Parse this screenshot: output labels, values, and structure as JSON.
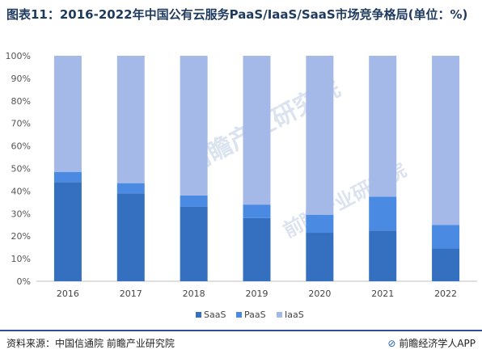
{
  "title": "图表11：2016-2022年中国公有云服务PaaS/IaaS/SaaS市场竞争格局(单位：%)",
  "footer": {
    "source": "资料来源：中国信通院 前瞻产业研究院",
    "brand_mark": "⊘",
    "brand": "前瞻经济学人APP"
  },
  "watermark": "前瞻产业研究院",
  "colors": {
    "SaaS": "#3570c0",
    "PaaS": "#4a8ae2",
    "IaaS": "#a4b9e8"
  },
  "chart_data": {
    "type": "bar",
    "stacked": true,
    "categories": [
      "2016",
      "2017",
      "2018",
      "2019",
      "2020",
      "2021",
      "2022"
    ],
    "series": [
      {
        "name": "SaaS",
        "values": [
          44,
          39,
          33,
          28,
          21.5,
          22.5,
          14.5
        ]
      },
      {
        "name": "PaaS",
        "values": [
          4.5,
          4.5,
          5,
          6,
          8,
          15,
          10.5
        ]
      },
      {
        "name": "IaaS",
        "values": [
          51.5,
          56.5,
          62,
          66,
          70.5,
          62.5,
          75
        ]
      }
    ],
    "yticks": [
      "0%",
      "10%",
      "20%",
      "30%",
      "40%",
      "50%",
      "60%",
      "70%",
      "80%",
      "90%",
      "100%"
    ],
    "ylim": [
      0,
      100
    ],
    "grid": false,
    "legend": "bottom"
  }
}
